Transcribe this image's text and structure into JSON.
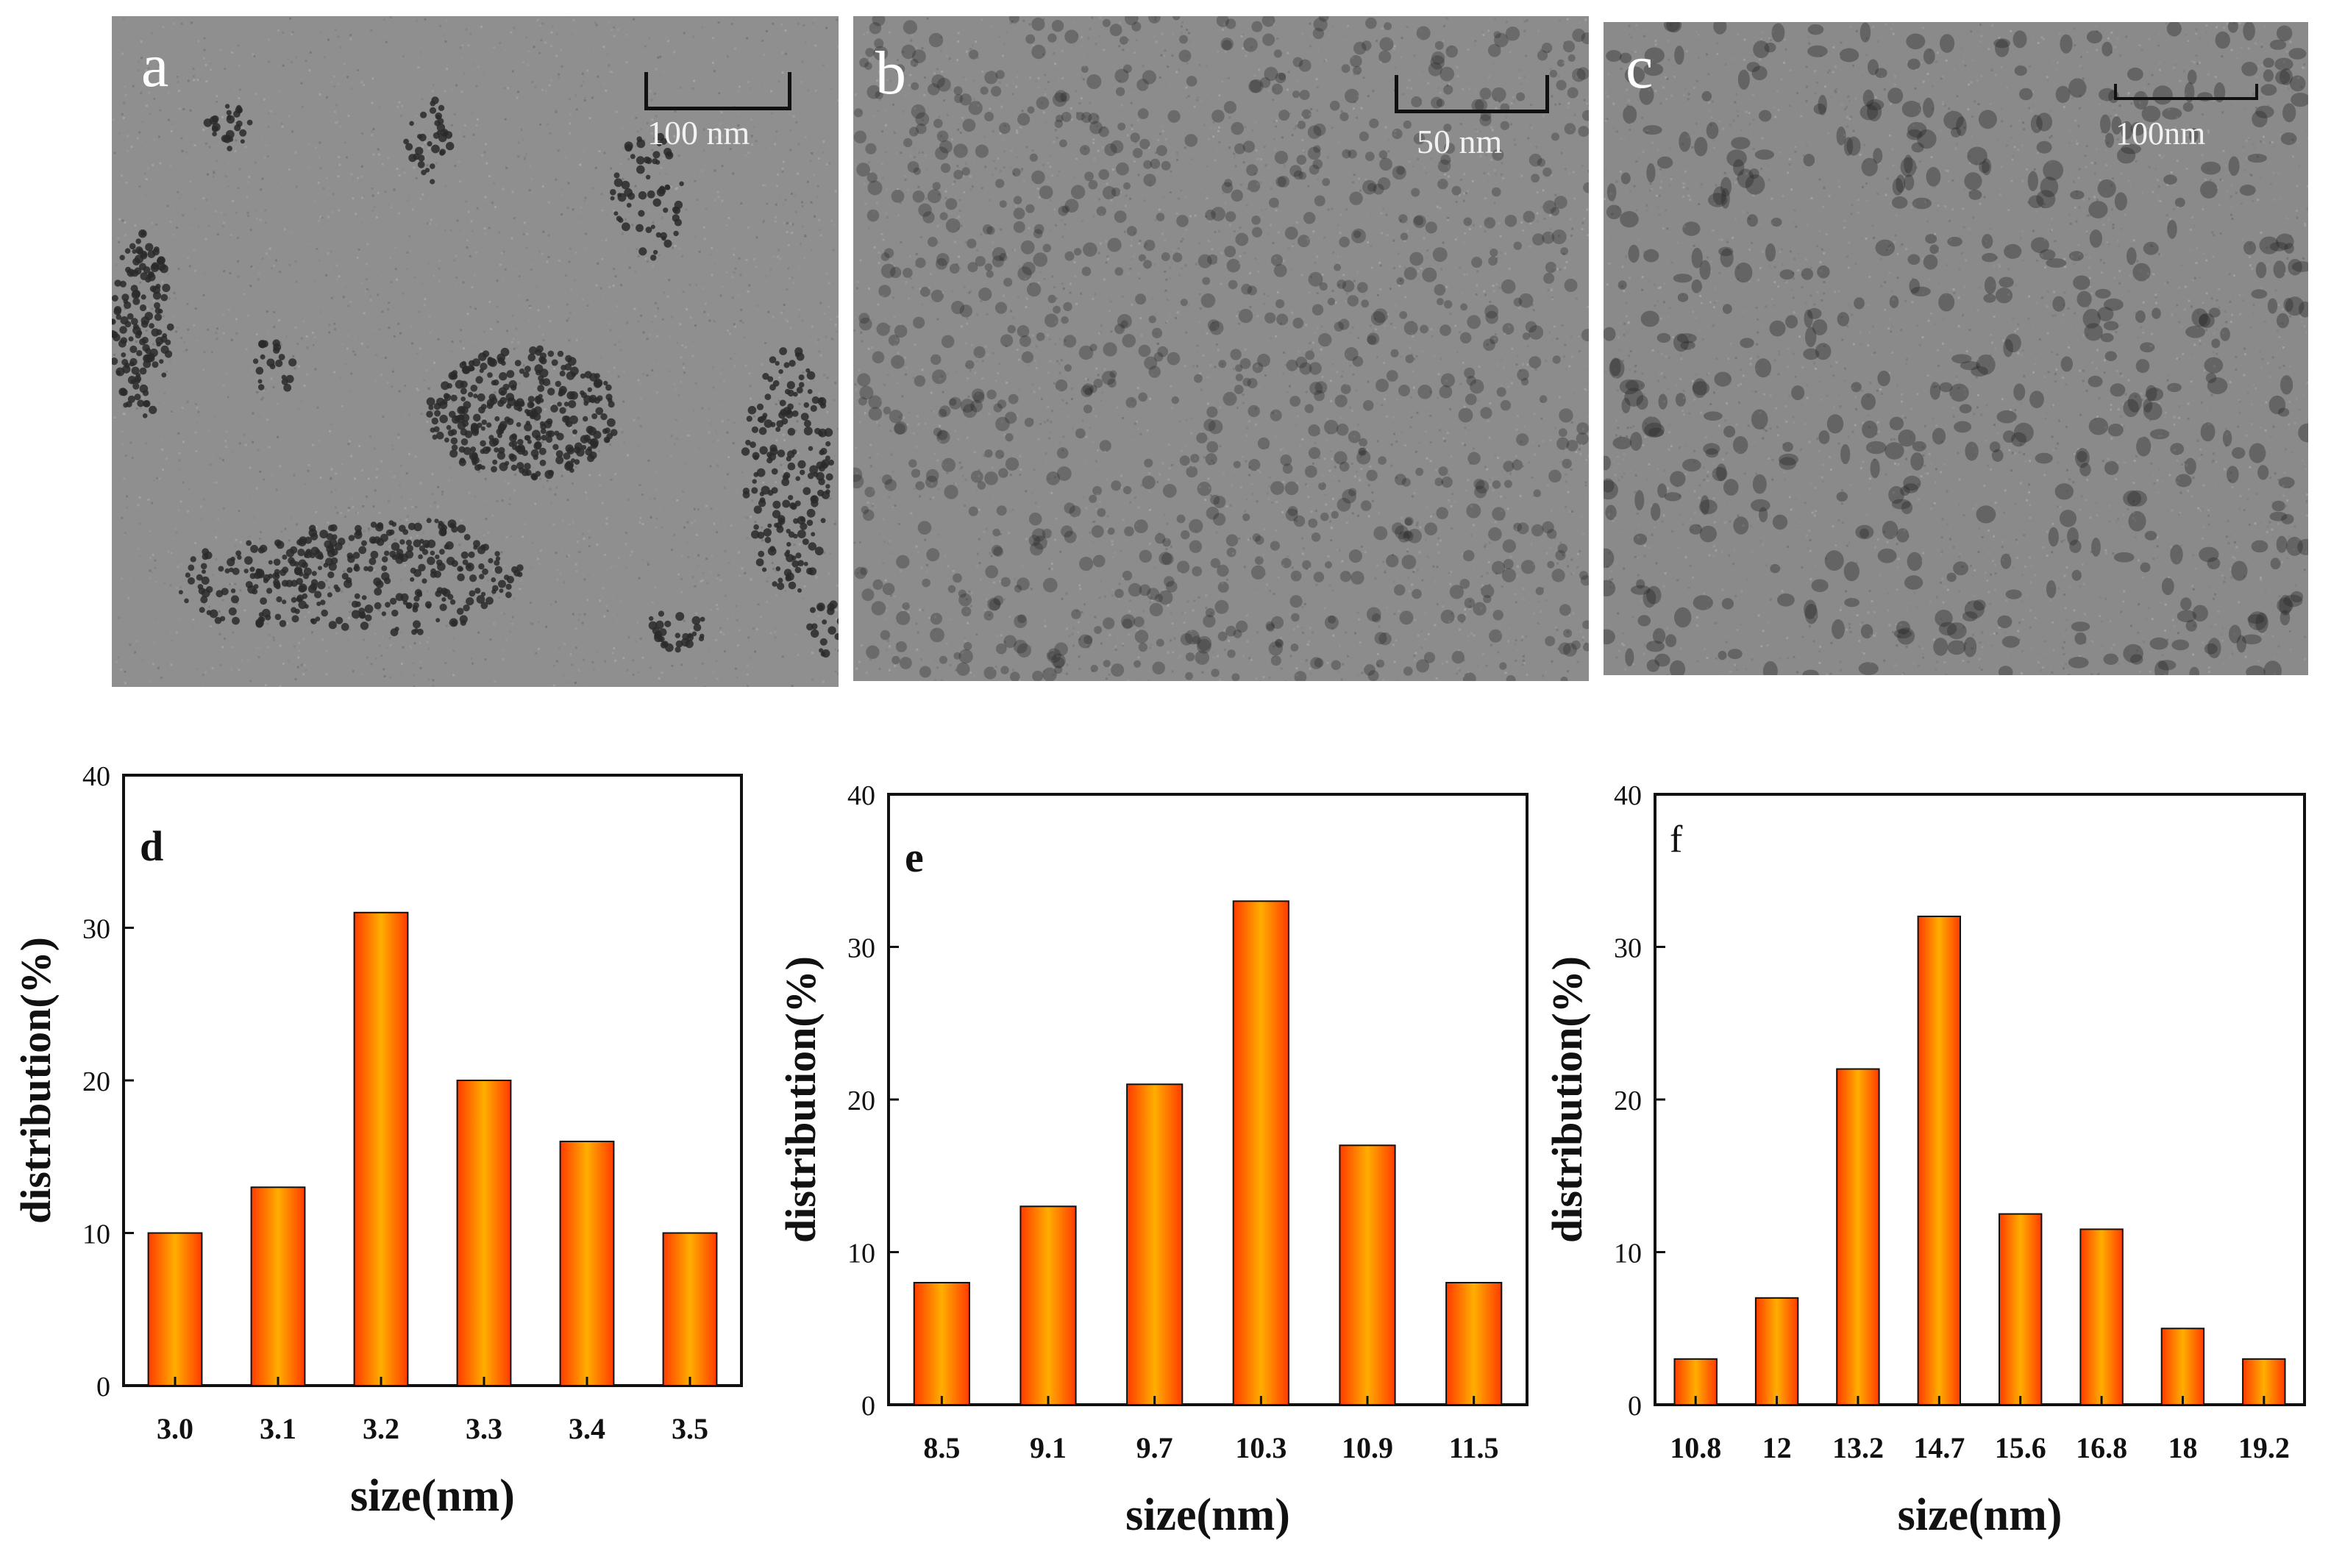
{
  "tem_panels": [
    {
      "letter": "a",
      "scale_label": "100 nm",
      "tone": "#8f8f8f",
      "particles": "clustered"
    },
    {
      "letter": "b",
      "scale_label": "50 nm",
      "tone": "#8c8c8c",
      "particles": "uniform"
    },
    {
      "letter": "c",
      "scale_label": "100nm",
      "tone": "#8a8a8a",
      "particles": "sparse"
    }
  ],
  "colors": {
    "bar_edge": "#ff3b00",
    "bar_center": "#ffae00",
    "bar_mid": "#ff7a00"
  },
  "chart_data": [
    {
      "type": "bar",
      "panel": "d",
      "categories": [
        "3.0",
        "3.1",
        "3.2",
        "3.3",
        "3.4",
        "3.5"
      ],
      "values": [
        10,
        13,
        31,
        20,
        16,
        10
      ],
      "xlabel": "size(nm)",
      "ylabel": "distribution(%)",
      "ylim": [
        0,
        40
      ],
      "yticks": [
        "0",
        "10",
        "20",
        "30",
        "40"
      ],
      "grid": false
    },
    {
      "type": "bar",
      "panel": "e",
      "categories": [
        "8.5",
        "9.1",
        "9.7",
        "10.3",
        "10.9",
        "11.5"
      ],
      "values": [
        8,
        13,
        21,
        33,
        17,
        8
      ],
      "xlabel": "size(nm)",
      "ylabel": "distribution(%)",
      "ylim": [
        0,
        40
      ],
      "yticks": [
        "0",
        "10",
        "20",
        "30",
        "40"
      ],
      "grid": false
    },
    {
      "type": "bar",
      "panel": "f",
      "categories": [
        "10.8",
        "12",
        "13.2",
        "14.7",
        "15.6",
        "16.8",
        "18",
        "19.2"
      ],
      "values": [
        3,
        7,
        22,
        32,
        12.5,
        11.5,
        5,
        3
      ],
      "xlabel": "size(nm)",
      "ylabel": "distribution(%)",
      "ylim": [
        0,
        40
      ],
      "yticks": [
        "0",
        "10",
        "20",
        "30",
        "40"
      ],
      "grid": false
    }
  ]
}
